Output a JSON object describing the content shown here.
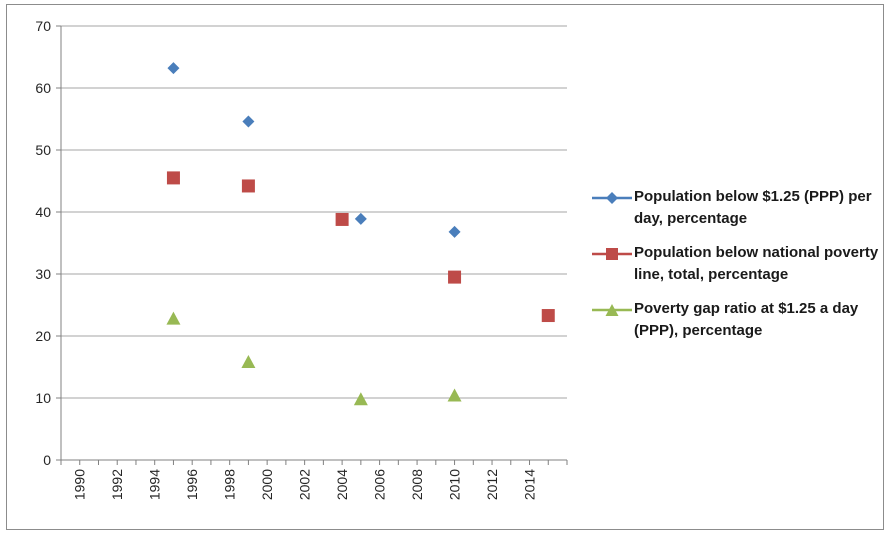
{
  "chart_data": {
    "type": "scatter",
    "title": "",
    "xlabel": "",
    "ylabel": "",
    "xlim": [
      1989,
      2016
    ],
    "ylim": [
      0,
      70
    ],
    "x_ticks": [
      "1990",
      "1992",
      "1994",
      "1996",
      "1998",
      "2000",
      "2002",
      "2004",
      "2006",
      "2008",
      "2010",
      "2012",
      "2014"
    ],
    "y_ticks": [
      "0",
      "10",
      "20",
      "30",
      "40",
      "50",
      "60",
      "70"
    ],
    "grid": "horizontal",
    "legend_position": "right",
    "series": [
      {
        "name": "Population below $1.25 (PPP) per day, percentage",
        "marker": "diamond",
        "color": "#4a7ebb",
        "points": [
          {
            "x": 1995,
            "y": 63.2
          },
          {
            "x": 1999,
            "y": 54.6
          },
          {
            "x": 2005,
            "y": 38.9
          },
          {
            "x": 2010,
            "y": 36.8
          }
        ]
      },
      {
        "name": "Population below national poverty line, total, percentage",
        "marker": "square",
        "color": "#be4b48",
        "points": [
          {
            "x": 1995,
            "y": 45.5
          },
          {
            "x": 1999,
            "y": 44.2
          },
          {
            "x": 2004,
            "y": 38.8
          },
          {
            "x": 2010,
            "y": 29.5
          },
          {
            "x": 2015,
            "y": 23.3
          }
        ]
      },
      {
        "name": "Poverty gap ratio at $1.25 a day (PPP), percentage",
        "marker": "triangle",
        "color": "#98b954",
        "points": [
          {
            "x": 1995,
            "y": 22.8
          },
          {
            "x": 1999,
            "y": 15.8
          },
          {
            "x": 2005,
            "y": 9.8
          },
          {
            "x": 2010,
            "y": 10.4
          }
        ]
      }
    ]
  }
}
